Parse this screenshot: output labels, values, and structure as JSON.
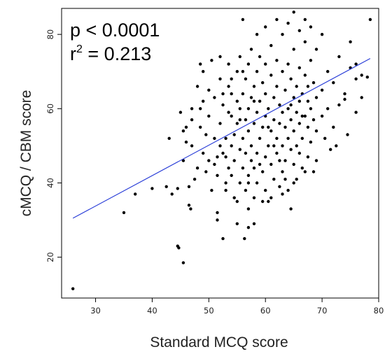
{
  "chart_data": {
    "type": "scatter",
    "title": "",
    "xlabel": "Standard MCQ score",
    "ylabel": "cMCQ / CBM score",
    "xlim": [
      24,
      80
    ],
    "ylim": [
      9,
      87
    ],
    "xticks": [
      30,
      40,
      50,
      60,
      70,
      80
    ],
    "yticks": [
      20,
      40,
      60,
      80
    ],
    "xtick_labels": [
      "30",
      "40",
      "50",
      "60",
      "70",
      "80"
    ],
    "ytick_labels": [
      "20",
      "40",
      "60",
      "80"
    ],
    "grid": false,
    "annotations": {
      "p_value": "p < 0.0001",
      "r2_prefix": "r",
      "r2_sup": "2",
      "r2_value": " = 0.213"
    },
    "regression_line": {
      "x": [
        26,
        78.5
      ],
      "y": [
        30.5,
        73.5
      ],
      "color": "#2b3fd8"
    },
    "points_color": "#000000",
    "points": [
      [
        26,
        11.5
      ],
      [
        35,
        32
      ],
      [
        37,
        37
      ],
      [
        40,
        38.5
      ],
      [
        42.5,
        39
      ],
      [
        43,
        52
      ],
      [
        43.5,
        37
      ],
      [
        44.5,
        38.5
      ],
      [
        44.5,
        23
      ],
      [
        44.7,
        22.5
      ],
      [
        45.5,
        18.5
      ],
      [
        45,
        59
      ],
      [
        45.5,
        54
      ],
      [
        45.5,
        46
      ],
      [
        46,
        55
      ],
      [
        46.5,
        39
      ],
      [
        46.5,
        34
      ],
      [
        46.8,
        33
      ],
      [
        47,
        50
      ],
      [
        47.5,
        41
      ],
      [
        47,
        60
      ],
      [
        48,
        44
      ],
      [
        48,
        66
      ],
      [
        48.5,
        72
      ],
      [
        48.5,
        55
      ],
      [
        49,
        62
      ],
      [
        49,
        70
      ],
      [
        49.5,
        53
      ],
      [
        50,
        46
      ],
      [
        50,
        58
      ],
      [
        50.5,
        38
      ],
      [
        50.5,
        73
      ],
      [
        51,
        52
      ],
      [
        51,
        63
      ],
      [
        51.5,
        42
      ],
      [
        51.5,
        32
      ],
      [
        51.5,
        30
      ],
      [
        52,
        56
      ],
      [
        52,
        68
      ],
      [
        52,
        74
      ],
      [
        52.5,
        48
      ],
      [
        52.5,
        25
      ],
      [
        52.5,
        61
      ],
      [
        53,
        38
      ],
      [
        53,
        47
      ],
      [
        53,
        52
      ],
      [
        53.5,
        59
      ],
      [
        53.5,
        66
      ],
      [
        53.5,
        72
      ],
      [
        54,
        42
      ],
      [
        54,
        50
      ],
      [
        54,
        58
      ],
      [
        54,
        64
      ],
      [
        54.5,
        36
      ],
      [
        54.5,
        46
      ],
      [
        54.5,
        53
      ],
      [
        55,
        56
      ],
      [
        55,
        62
      ],
      [
        55,
        70
      ],
      [
        55,
        29
      ],
      [
        55.5,
        40
      ],
      [
        55.5,
        49
      ],
      [
        55.5,
        60
      ],
      [
        55.5,
        74
      ],
      [
        56,
        44
      ],
      [
        56,
        52
      ],
      [
        56,
        64
      ],
      [
        56,
        84
      ],
      [
        56.3,
        25
      ],
      [
        56.5,
        38
      ],
      [
        56.5,
        48
      ],
      [
        56.5,
        57
      ],
      [
        56.5,
        68
      ],
      [
        57,
        42
      ],
      [
        57,
        54
      ],
      [
        57,
        60
      ],
      [
        57,
        72
      ],
      [
        57,
        28
      ],
      [
        57.5,
        46
      ],
      [
        57.5,
        50
      ],
      [
        57.5,
        63
      ],
      [
        57.5,
        76
      ],
      [
        58,
        36
      ],
      [
        58,
        44
      ],
      [
        58,
        56
      ],
      [
        58,
        66
      ],
      [
        58,
        29
      ],
      [
        58.5,
        40
      ],
      [
        58.5,
        48
      ],
      [
        58.5,
        59
      ],
      [
        58.5,
        70
      ],
      [
        58.5,
        80
      ],
      [
        59,
        52
      ],
      [
        59,
        62
      ],
      [
        59,
        74
      ],
      [
        59.5,
        43
      ],
      [
        59.5,
        55
      ],
      [
        59.5,
        67
      ],
      [
        60,
        38
      ],
      [
        60,
        47
      ],
      [
        60,
        58
      ],
      [
        60,
        64
      ],
      [
        60,
        72
      ],
      [
        60,
        82
      ],
      [
        60.5,
        35
      ],
      [
        60.5,
        50
      ],
      [
        60.5,
        60
      ],
      [
        61,
        45
      ],
      [
        61,
        54
      ],
      [
        61,
        69
      ],
      [
        61,
        77
      ],
      [
        61.5,
        41
      ],
      [
        61.5,
        57
      ],
      [
        61.5,
        63
      ],
      [
        62,
        48
      ],
      [
        62,
        52
      ],
      [
        62,
        66
      ],
      [
        62,
        73
      ],
      [
        62,
        84
      ],
      [
        62.5,
        39
      ],
      [
        62.5,
        56
      ],
      [
        62.5,
        61
      ],
      [
        63,
        43
      ],
      [
        63,
        50
      ],
      [
        63,
        59
      ],
      [
        63,
        70
      ],
      [
        63,
        80
      ],
      [
        63.5,
        46
      ],
      [
        63.5,
        55
      ],
      [
        63.5,
        65
      ],
      [
        64,
        38
      ],
      [
        64,
        52
      ],
      [
        64,
        60
      ],
      [
        64,
        72
      ],
      [
        64,
        83
      ],
      [
        64.5,
        33
      ],
      [
        64.5,
        49
      ],
      [
        64.5,
        57
      ],
      [
        64.5,
        68
      ],
      [
        65,
        45
      ],
      [
        65,
        54
      ],
      [
        65,
        63
      ],
      [
        65,
        76
      ],
      [
        65,
        86
      ],
      [
        65.5,
        41
      ],
      [
        65.5,
        59
      ],
      [
        65.5,
        66
      ],
      [
        66,
        48
      ],
      [
        66,
        56
      ],
      [
        66,
        62
      ],
      [
        66,
        71
      ],
      [
        66,
        81
      ],
      [
        66.5,
        44
      ],
      [
        66.5,
        52
      ],
      [
        66.5,
        64
      ],
      [
        67,
        58
      ],
      [
        67,
        69
      ],
      [
        67,
        78
      ],
      [
        67,
        84
      ],
      [
        67.5,
        47
      ],
      [
        67.5,
        55
      ],
      [
        67.5,
        62
      ],
      [
        68,
        51
      ],
      [
        68,
        60
      ],
      [
        68,
        73
      ],
      [
        68,
        82
      ],
      [
        68.5,
        43
      ],
      [
        68.5,
        57
      ],
      [
        68.5,
        67
      ],
      [
        69,
        54
      ],
      [
        69,
        63
      ],
      [
        69,
        76
      ],
      [
        70,
        58
      ],
      [
        70,
        65
      ],
      [
        70,
        80
      ],
      [
        70.5,
        52
      ],
      [
        71,
        60
      ],
      [
        71,
        70
      ],
      [
        72,
        55
      ],
      [
        72,
        67
      ],
      [
        72.5,
        50
      ],
      [
        73,
        61
      ],
      [
        73,
        74
      ],
      [
        74,
        64
      ],
      [
        74,
        62.5
      ],
      [
        75,
        71
      ],
      [
        75,
        78
      ],
      [
        76,
        72
      ],
      [
        76,
        68
      ],
      [
        77,
        69
      ],
      [
        78,
        68.5
      ],
      [
        78.5,
        84
      ],
      [
        49,
        48
      ],
      [
        51,
        45
      ],
      [
        52,
        50
      ],
      [
        53.5,
        44
      ],
      [
        55.5,
        57
      ],
      [
        57,
        40
      ],
      [
        59,
        45
      ],
      [
        60.5,
        55
      ],
      [
        61.5,
        50
      ],
      [
        62.5,
        46
      ],
      [
        63.5,
        41
      ],
      [
        64.5,
        61
      ],
      [
        65.5,
        50
      ],
      [
        66.5,
        58
      ],
      [
        67.5,
        66
      ],
      [
        58,
        62
      ],
      [
        56,
        70
      ],
      [
        54,
        68
      ],
      [
        52.5,
        64
      ],
      [
        50,
        65
      ],
      [
        48.5,
        60
      ],
      [
        47,
        57
      ],
      [
        46,
        51
      ],
      [
        49.5,
        43
      ],
      [
        51.5,
        47
      ],
      [
        53,
        40
      ],
      [
        55,
        35
      ],
      [
        57,
        33
      ],
      [
        59.5,
        35
      ],
      [
        61,
        36
      ],
      [
        63,
        37
      ],
      [
        65,
        40
      ],
      [
        67,
        43
      ],
      [
        69,
        46
      ],
      [
        71.5,
        49
      ],
      [
        74.5,
        53
      ],
      [
        76,
        59
      ],
      [
        77,
        63
      ]
    ]
  }
}
